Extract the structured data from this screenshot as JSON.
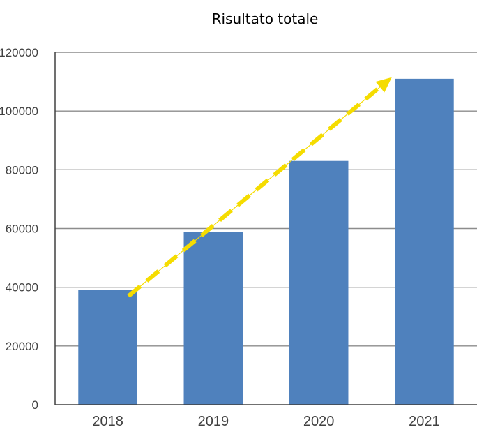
{
  "chart_data": {
    "type": "bar",
    "title": "Risultato totale",
    "xlabel": "",
    "ylabel": "",
    "categories": [
      "2018",
      "2019",
      "2020",
      "2021"
    ],
    "values": [
      39000,
      58800,
      83000,
      111000
    ],
    "ylim": [
      0,
      120000
    ],
    "y_ticks": [
      "0",
      "20000",
      "40000",
      "60000",
      "80000",
      "100000",
      "120000"
    ],
    "grid": "horizontal",
    "legend": "none",
    "bar_color": "#4f81bd",
    "grid_color": "#8c8c8c",
    "trend_arrow": {
      "style": "dashed",
      "color": "#f5dc00",
      "from": {
        "category": "2018",
        "value": 37000
      },
      "to": {
        "category": "2021",
        "value": 111500
      }
    }
  }
}
